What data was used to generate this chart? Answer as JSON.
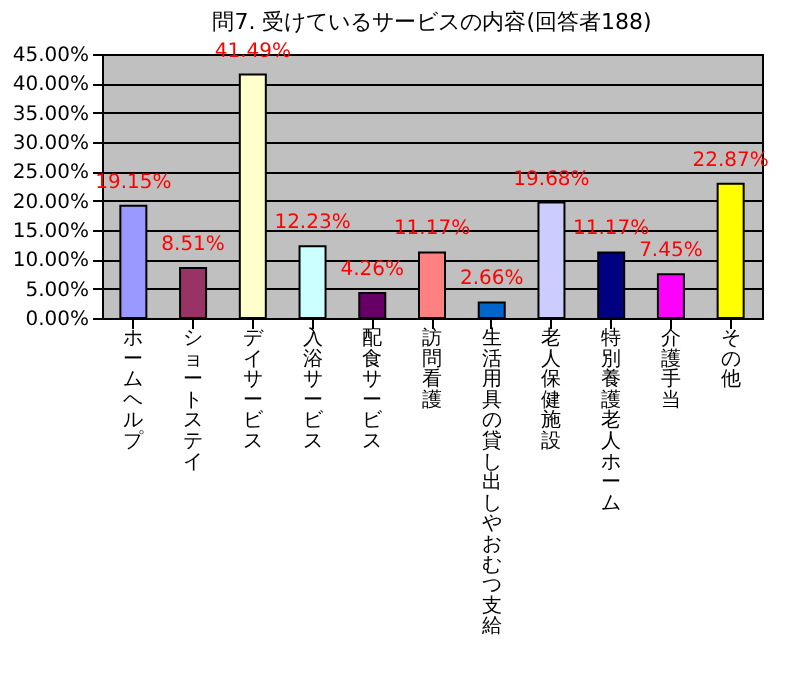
{
  "chart_data": {
    "type": "bar",
    "title": "問7. 受けているサービスの内容(回答者188)",
    "categories": [
      "ホームヘルプ",
      "ショートステイ",
      "デイサービス",
      "入浴サービス",
      "配食サービス",
      "訪問看護",
      "生活用具の貸し出しやおむつ支給",
      "老人保健施設",
      "特別養護老人ホーム",
      "介護手当",
      "その他"
    ],
    "values": [
      19.15,
      8.51,
      41.49,
      12.23,
      4.26,
      11.17,
      2.66,
      19.68,
      11.17,
      7.45,
      22.87
    ],
    "colors": [
      "#9999ff",
      "#993366",
      "#ffffcc",
      "#ccffff",
      "#660066",
      "#ff8080",
      "#0066cc",
      "#ccccff",
      "#000080",
      "#ff00ff",
      "#ffff00"
    ],
    "value_labels": [
      "19.15%",
      "8.51%",
      "41.49%",
      "12.23%",
      "4.26%",
      "11.17%",
      "2.66%",
      "19.68%",
      "11.17%",
      "7.45%",
      "22.87%"
    ],
    "ylim": [
      0,
      45
    ],
    "yticks": [
      {
        "value": 0,
        "label": "0.00%"
      },
      {
        "value": 5,
        "label": "5.00%"
      },
      {
        "value": 10,
        "label": "10.00%"
      },
      {
        "value": 15,
        "label": "15.00%"
      },
      {
        "value": 20,
        "label": "20.00%"
      },
      {
        "value": 25,
        "label": "25.00%"
      },
      {
        "value": 30,
        "label": "30.00%"
      },
      {
        "value": 35,
        "label": "35.00%"
      },
      {
        "value": 40,
        "label": "40.00%"
      },
      {
        "value": 45,
        "label": "45.00%"
      }
    ],
    "grid": "y"
  }
}
